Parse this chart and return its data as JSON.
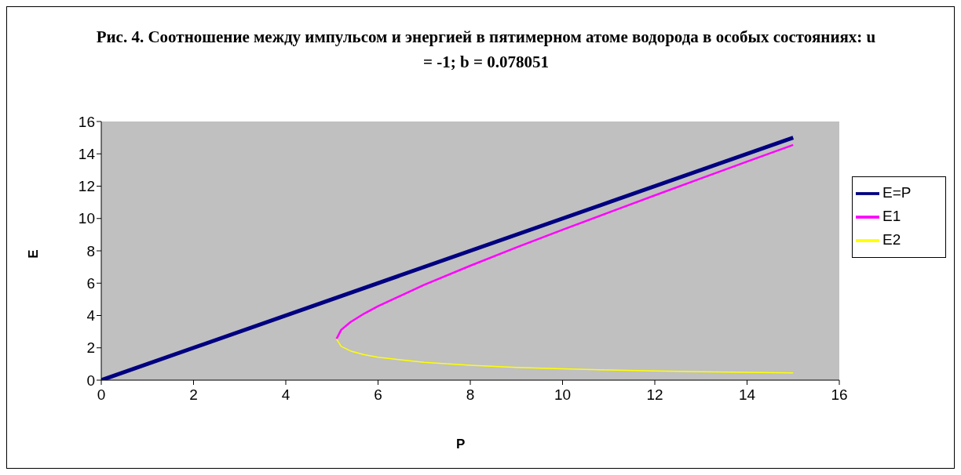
{
  "chart_data": {
    "type": "line",
    "title": "Рис. 4. Соотношение между импульсом и энергией в пятимерном атоме водорода в особых состояниях: u = -1; b = 0.078051",
    "xlabel": "P",
    "ylabel": "E",
    "xlim": [
      0,
      16
    ],
    "ylim": [
      0,
      16
    ],
    "xticks": [
      0,
      2,
      4,
      6,
      8,
      10,
      12,
      14,
      16
    ],
    "yticks": [
      0,
      2,
      4,
      6,
      8,
      10,
      12,
      14,
      16
    ],
    "legend": "right",
    "marker": "none",
    "line_style": "solid",
    "series": [
      {
        "name": "E=P",
        "color": "#000080",
        "x": [
          0,
          15
        ],
        "values": [
          0,
          15
        ]
      },
      {
        "name": "E1",
        "color": "#ff00ff",
        "x": [
          5.1,
          5.2,
          5.4,
          5.7,
          6,
          7,
          8,
          9,
          10,
          11,
          12,
          13,
          14,
          15
        ],
        "values": [
          2.55,
          3.11,
          3.59,
          4.12,
          4.58,
          5.9,
          7.08,
          8.21,
          9.3,
          10.37,
          11.43,
          12.48,
          13.52,
          14.55
        ]
      },
      {
        "name": "E2",
        "color": "#ffff00",
        "x": [
          5.1,
          5.2,
          5.4,
          5.7,
          6,
          7,
          8,
          9,
          10,
          11,
          12,
          13,
          14,
          15
        ],
        "values": [
          2.55,
          2.09,
          1.81,
          1.58,
          1.42,
          1.1,
          0.92,
          0.79,
          0.7,
          0.63,
          0.57,
          0.52,
          0.48,
          0.45
        ]
      }
    ]
  }
}
